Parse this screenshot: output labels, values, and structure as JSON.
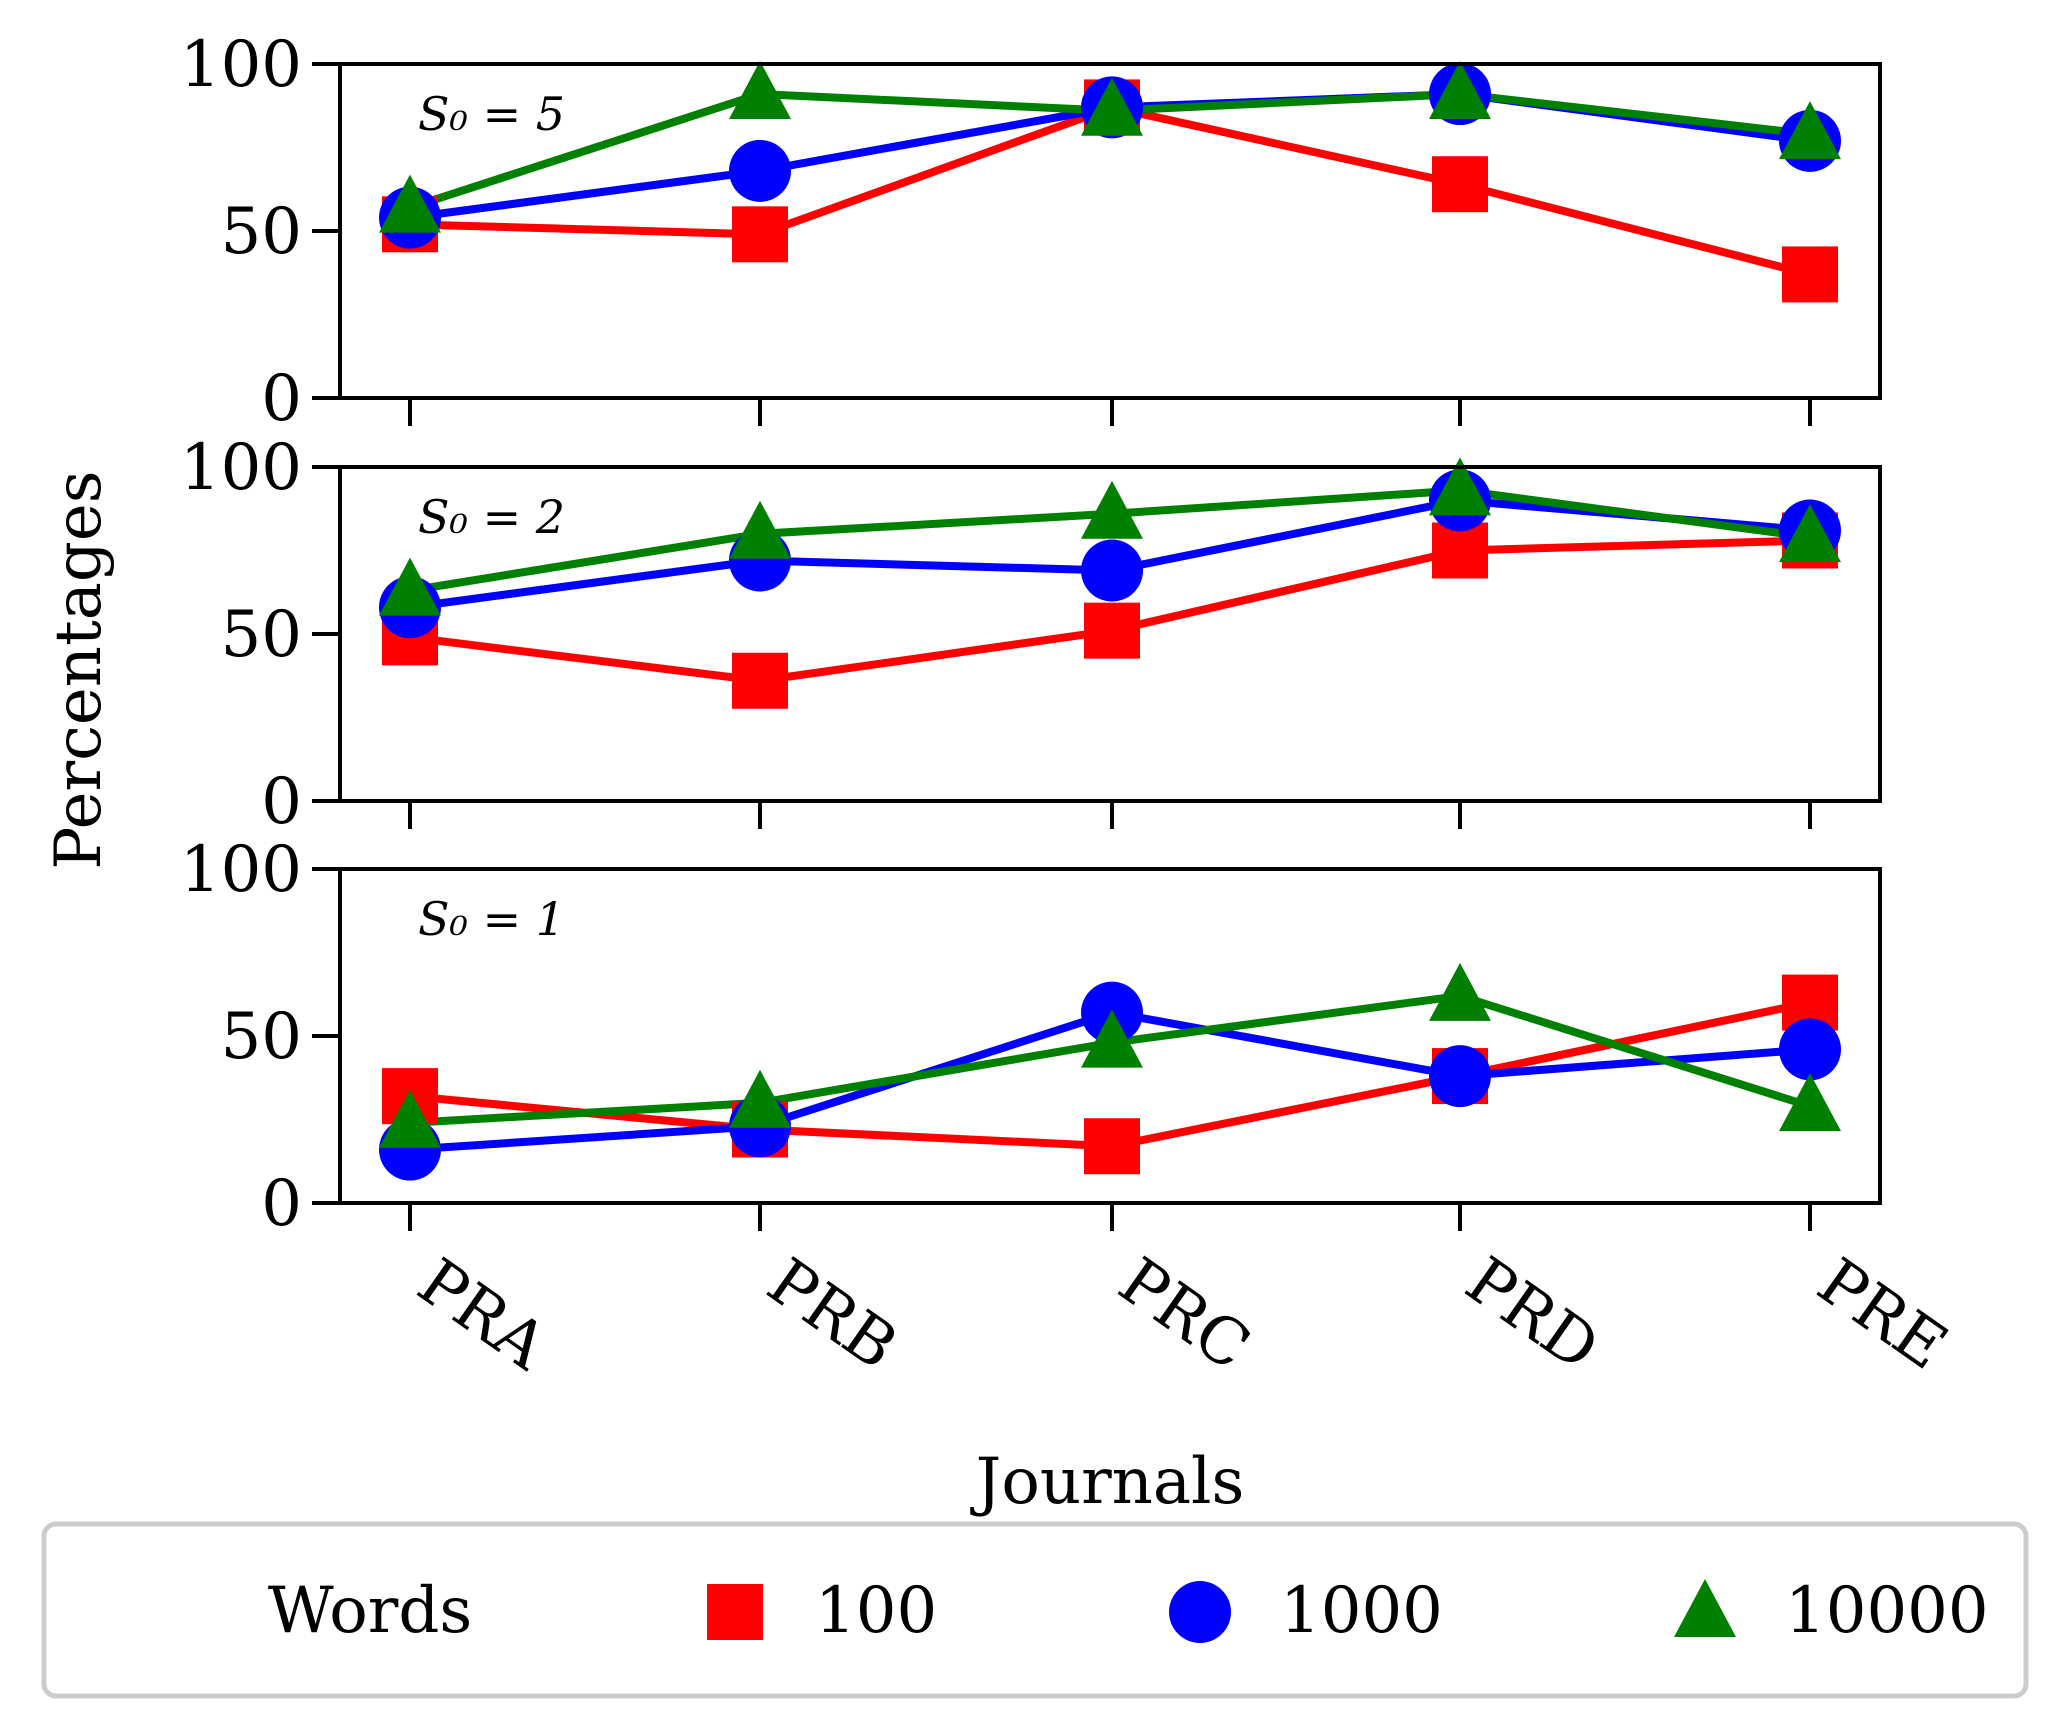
{
  "chart_data": {
    "type": "line",
    "categories": [
      "PRA",
      "PRB",
      "PRC",
      "PRD",
      "PRE"
    ],
    "xlabel": "Journals",
    "ylabel": "Percentages",
    "ylim": [
      0,
      100
    ],
    "yticks": [
      "0",
      "50",
      "100"
    ],
    "grid": false,
    "colors": {
      "100": "#ff0000",
      "1000": "#0000ff",
      "10000": "#008000"
    },
    "legend": {
      "placement": "bottom",
      "title": "Words",
      "entries": [
        {
          "label": "100",
          "marker": "square",
          "color": "#ff0000"
        },
        {
          "label": "1000",
          "marker": "circle",
          "color": "#0000ff"
        },
        {
          "label": "10000",
          "marker": "triangle",
          "color": "#008000"
        }
      ]
    },
    "panels": [
      {
        "label": "S₀ = 5",
        "series": [
          {
            "name": "100",
            "values": [
              52,
              49,
              87,
              64,
              37
            ]
          },
          {
            "name": "1000",
            "values": [
              54,
              68,
              87,
              91,
              77
            ]
          },
          {
            "name": "10000",
            "values": [
              57,
              91,
              86,
              91,
              79
            ]
          }
        ]
      },
      {
        "label": "S₀ = 2",
        "series": [
          {
            "name": "100",
            "values": [
              49,
              36,
              51,
              75,
              78
            ]
          },
          {
            "name": "1000",
            "values": [
              58,
              72,
              69,
              90,
              81
            ]
          },
          {
            "name": "10000",
            "values": [
              63,
              80,
              86,
              93,
              79
            ]
          }
        ]
      },
      {
        "label": "S₀ = 1",
        "series": [
          {
            "name": "100",
            "values": [
              32,
              22,
              17,
              38,
              60
            ]
          },
          {
            "name": "1000",
            "values": [
              16,
              23,
              57,
              38,
              46
            ]
          },
          {
            "name": "10000",
            "values": [
              24,
              30,
              48,
              62,
              29
            ]
          }
        ]
      }
    ]
  }
}
